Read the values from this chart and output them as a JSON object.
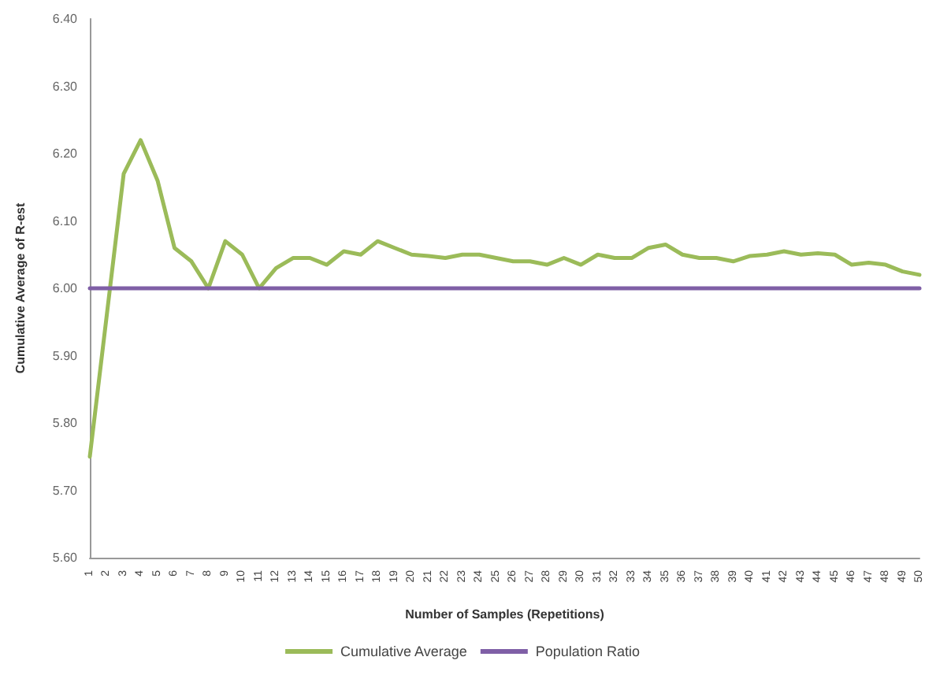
{
  "chart_data": {
    "type": "line",
    "xlabel": "Number of Samples (Repetitions)",
    "ylabel": "Cumulative Average of R-est",
    "categories": [
      "1",
      "2",
      "3",
      "4",
      "5",
      "6",
      "7",
      "8",
      "9",
      "10",
      "11",
      "12",
      "13",
      "14",
      "15",
      "16",
      "17",
      "18",
      "19",
      "20",
      "21",
      "22",
      "23",
      "24",
      "25",
      "26",
      "27",
      "28",
      "29",
      "30",
      "31",
      "32",
      "33",
      "34",
      "35",
      "36",
      "37",
      "38",
      "39",
      "40",
      "41",
      "42",
      "43",
      "44",
      "45",
      "46",
      "47",
      "48",
      "49",
      "50"
    ],
    "series": [
      {
        "name": "Cumulative Average",
        "color": "#9bbb59",
        "values": [
          5.75,
          5.96,
          6.17,
          6.22,
          6.16,
          6.06,
          6.04,
          6.0,
          6.07,
          6.05,
          6.0,
          6.03,
          6.045,
          6.045,
          6.035,
          6.055,
          6.05,
          6.07,
          6.06,
          6.05,
          6.048,
          6.045,
          6.05,
          6.05,
          6.045,
          6.04,
          6.04,
          6.035,
          6.045,
          6.035,
          6.05,
          6.045,
          6.045,
          6.06,
          6.065,
          6.05,
          6.045,
          6.045,
          6.04,
          6.048,
          6.05,
          6.055,
          6.05,
          6.052,
          6.05,
          6.035,
          6.038,
          6.035,
          6.025,
          6.02
        ]
      },
      {
        "name": "Population Ratio",
        "color": "#7f5fa6",
        "values": [
          6,
          6,
          6,
          6,
          6,
          6,
          6,
          6,
          6,
          6,
          6,
          6,
          6,
          6,
          6,
          6,
          6,
          6,
          6,
          6,
          6,
          6,
          6,
          6,
          6,
          6,
          6,
          6,
          6,
          6,
          6,
          6,
          6,
          6,
          6,
          6,
          6,
          6,
          6,
          6,
          6,
          6,
          6,
          6,
          6,
          6,
          6,
          6,
          6,
          6
        ]
      }
    ],
    "ylim": [
      5.6,
      6.4
    ],
    "yticks": [
      {
        "value": 5.6,
        "label": "5.60"
      },
      {
        "value": 5.7,
        "label": "5.70"
      },
      {
        "value": 5.8,
        "label": "5.80"
      },
      {
        "value": 5.9,
        "label": "5.90"
      },
      {
        "value": 6.0,
        "label": "6.00"
      },
      {
        "value": 6.1,
        "label": "6.10"
      },
      {
        "value": 6.2,
        "label": "6.20"
      },
      {
        "value": 6.3,
        "label": "6.30"
      },
      {
        "value": 6.4,
        "label": "6.40"
      }
    ],
    "grid": false,
    "legend": "bottom",
    "marker": "none",
    "line_style": "solid"
  }
}
